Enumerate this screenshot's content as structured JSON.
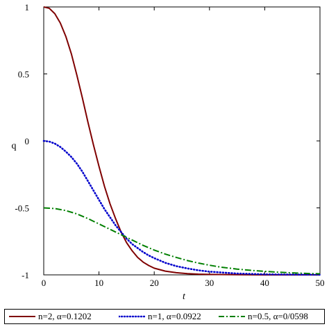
{
  "chart_data": {
    "type": "line",
    "title": "",
    "xlabel": "t",
    "ylabel": "q",
    "xlim": [
      0,
      50
    ],
    "ylim": [
      -1,
      1
    ],
    "xticks": [
      0,
      10,
      20,
      30,
      40,
      50
    ],
    "yticks": [
      1,
      0.5,
      0,
      -0.5,
      -1
    ],
    "xtick_labels": [
      "0",
      "10",
      "20",
      "30",
      "40",
      "50"
    ],
    "ytick_labels": [
      "1",
      "0.5",
      "0",
      "-0.5",
      "-1"
    ],
    "grid": false,
    "legend_position": "bottom",
    "series": [
      {
        "name": "n=2, α=0.1202",
        "color": "#7f0000",
        "style": "solid",
        "x": [
          0,
          1,
          2,
          3,
          4,
          5,
          6,
          7,
          8,
          9,
          10,
          11,
          12,
          13,
          14,
          15,
          16,
          17,
          18,
          19,
          20,
          22,
          24,
          26,
          28,
          30,
          35,
          40,
          45,
          50
        ],
        "y": [
          1.0,
          0.99,
          0.95,
          0.88,
          0.78,
          0.65,
          0.49,
          0.32,
          0.14,
          -0.03,
          -0.19,
          -0.34,
          -0.47,
          -0.58,
          -0.68,
          -0.76,
          -0.82,
          -0.87,
          -0.905,
          -0.93,
          -0.95,
          -0.972,
          -0.984,
          -0.991,
          -0.995,
          -0.997,
          -0.999,
          -1.0,
          -1.0,
          -1.0
        ]
      },
      {
        "name": "n=1, α=0.0922",
        "color": "#0000cc",
        "style": "dotted",
        "x": [
          0,
          1,
          2,
          3,
          4,
          5,
          6,
          7,
          8,
          9,
          10,
          11,
          12,
          13,
          14,
          15,
          16,
          17,
          18,
          19,
          20,
          22,
          24,
          26,
          28,
          30,
          35,
          40,
          45,
          50
        ],
        "y": [
          0.0,
          -0.005,
          -0.02,
          -0.045,
          -0.08,
          -0.12,
          -0.17,
          -0.23,
          -0.3,
          -0.37,
          -0.44,
          -0.51,
          -0.57,
          -0.63,
          -0.68,
          -0.73,
          -0.77,
          -0.8,
          -0.83,
          -0.855,
          -0.875,
          -0.91,
          -0.935,
          -0.952,
          -0.966,
          -0.976,
          -0.99,
          -0.996,
          -0.998,
          -0.999
        ]
      },
      {
        "name": "n=0.5, α=0/0598",
        "color": "#007f00",
        "style": "dashdot",
        "x": [
          0,
          2,
          4,
          6,
          8,
          10,
          12,
          14,
          16,
          18,
          20,
          22,
          24,
          26,
          28,
          30,
          32,
          35,
          38,
          40,
          42,
          45,
          48,
          50
        ],
        "y": [
          -0.5,
          -0.505,
          -0.52,
          -0.545,
          -0.58,
          -0.62,
          -0.66,
          -0.7,
          -0.74,
          -0.78,
          -0.815,
          -0.845,
          -0.87,
          -0.893,
          -0.912,
          -0.928,
          -0.942,
          -0.957,
          -0.968,
          -0.974,
          -0.979,
          -0.985,
          -0.99,
          -0.992
        ]
      }
    ]
  }
}
